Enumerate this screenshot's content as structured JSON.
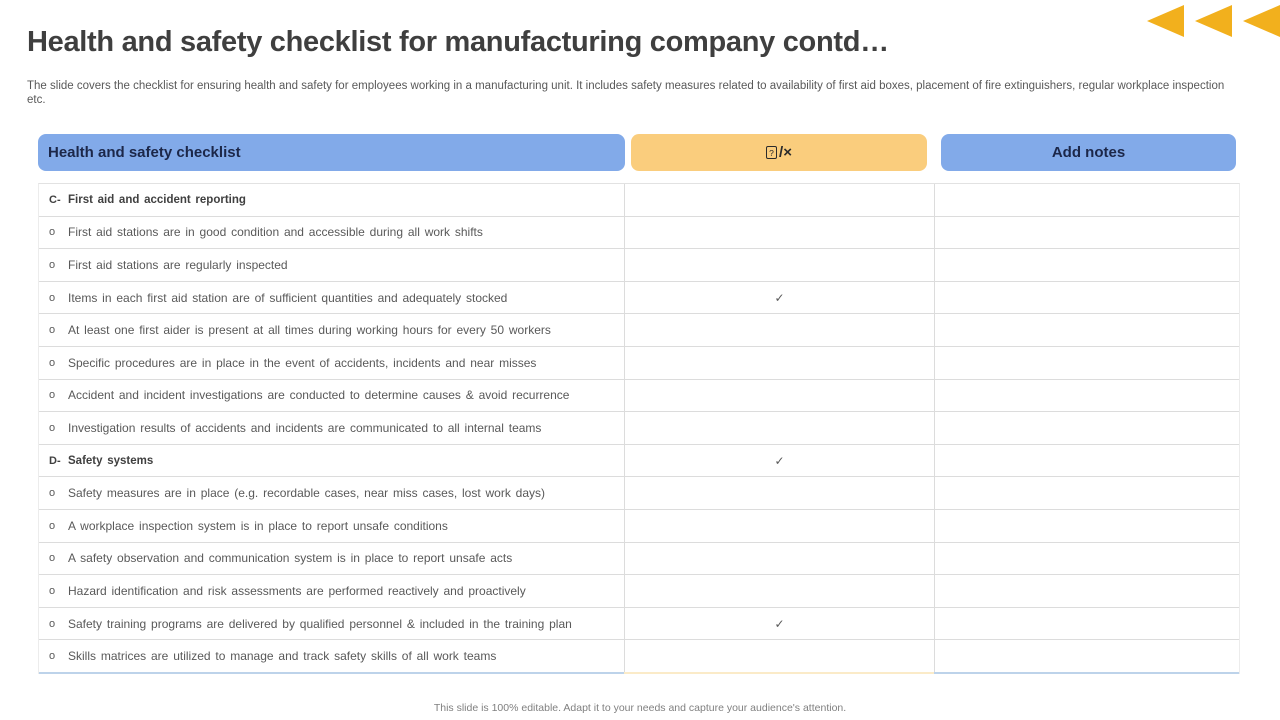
{
  "slide": {
    "title": "Health and safety checklist for manufacturing company contd…",
    "subtitle": "The slide covers the checklist for ensuring health and safety for employees working in a manufacturing unit. It includes safety measures related to availability of first aid boxes, placement of fire extinguishers, regular workplace inspection etc.",
    "footer": "This slide is 100% editable.  Adapt it to your needs and capture your audience's attention."
  },
  "decoration": {
    "arrow_icon": "left-triangle-icon",
    "arrow_count": 3,
    "arrow_color": "#F2B01D"
  },
  "colors": {
    "accent_blue": "#82AAE9",
    "accent_orange": "#FACD7D",
    "header_text": "#1C2749",
    "body_text": "#595959",
    "section_text": "#404040",
    "grid_line": "#DCDCDC",
    "bottom_border_blue": "#BDD3EA",
    "bottom_border_cream": "#FBEBC8"
  },
  "table": {
    "headers": {
      "checklist": "Health and safety checklist",
      "check_box_char": "?",
      "check_rest": "/×",
      "notes": "Add notes"
    },
    "bullet": "o",
    "check_mark": "✓",
    "rows": [
      {
        "type": "section",
        "prefix": "C-",
        "text": "First aid and accident reporting",
        "checked": false
      },
      {
        "type": "item",
        "text": "First aid stations are in good condition and accessible during all work shifts",
        "checked": false
      },
      {
        "type": "item",
        "text": "First aid stations are regularly inspected",
        "checked": false
      },
      {
        "type": "item",
        "text": "Items in each first aid station are of sufficient quantities and adequately stocked",
        "checked": true
      },
      {
        "type": "item",
        "text": "At least one first aider is present at all times during working hours for every 50 workers",
        "checked": false
      },
      {
        "type": "item",
        "text": "Specific procedures are in place in the event of accidents, incidents and near misses",
        "checked": false
      },
      {
        "type": "item",
        "text": "Accident and incident investigations are conducted to determine causes & avoid recurrence",
        "checked": false
      },
      {
        "type": "item",
        "text": "Investigation results of accidents and incidents are communicated to all internal teams",
        "checked": false
      },
      {
        "type": "section",
        "prefix": "D-",
        "text": "Safety systems",
        "checked": true
      },
      {
        "type": "item",
        "text": "Safety measures are in place (e.g. recordable cases, near miss cases, lost work days)",
        "checked": false
      },
      {
        "type": "item",
        "text": "A workplace inspection system is in place to report unsafe conditions",
        "checked": false
      },
      {
        "type": "item",
        "text": "A safety observation and communication system is in place to report unsafe acts",
        "checked": false
      },
      {
        "type": "item",
        "text": "Hazard identification and risk assessments are performed reactively and proactively",
        "checked": false
      },
      {
        "type": "item",
        "text": "Safety training programs are delivered by qualified personnel & included in the training plan",
        "checked": true
      },
      {
        "type": "item",
        "text": "Skills matrices are utilized to manage and track safety skills of all work teams",
        "checked": false
      }
    ]
  }
}
